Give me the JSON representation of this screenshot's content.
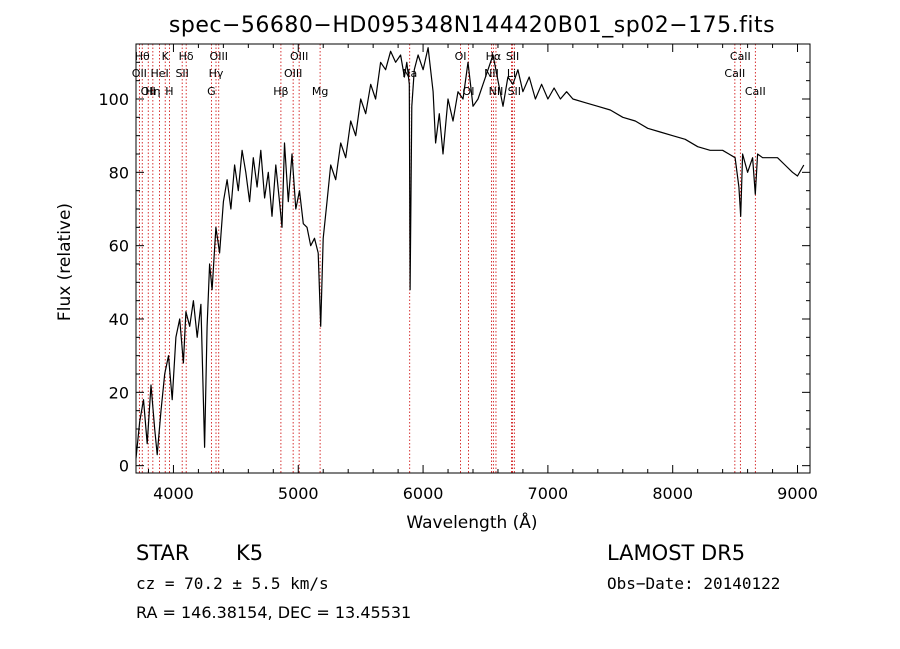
{
  "chart_data": {
    "type": "line",
    "title": "spec−56680−HD095348N144420B01_sp02−175.fits",
    "xlabel": "Wavelength (Å)",
    "ylabel": "Flux (relative)",
    "xlim": [
      3700,
      9100
    ],
    "ylim": [
      -2,
      115
    ],
    "xticks": [
      4000,
      5000,
      6000,
      7000,
      8000,
      9000
    ],
    "yticks": [
      0,
      20,
      40,
      60,
      80,
      100
    ],
    "grid": false,
    "line_color": "#000000",
    "marker_color": "#cc0000",
    "spectrum": {
      "x": [
        3700,
        3730,
        3760,
        3790,
        3820,
        3850,
        3870,
        3900,
        3930,
        3960,
        3990,
        4020,
        4050,
        4080,
        4100,
        4130,
        4160,
        4190,
        4220,
        4250,
        4270,
        4290,
        4310,
        4340,
        4370,
        4400,
        4430,
        4460,
        4490,
        4520,
        4550,
        4580,
        4610,
        4640,
        4670,
        4700,
        4730,
        4760,
        4790,
        4820,
        4850,
        4870,
        4890,
        4920,
        4950,
        4980,
        5010,
        5040,
        5070,
        5100,
        5130,
        5160,
        5180,
        5200,
        5230,
        5260,
        5300,
        5340,
        5380,
        5420,
        5460,
        5500,
        5540,
        5580,
        5620,
        5660,
        5700,
        5740,
        5780,
        5820,
        5850,
        5870,
        5890,
        5896,
        5910,
        5930,
        5960,
        6000,
        6040,
        6080,
        6100,
        6130,
        6160,
        6200,
        6240,
        6280,
        6320,
        6360,
        6400,
        6440,
        6480,
        6520,
        6560,
        6600,
        6640,
        6680,
        6720,
        6760,
        6800,
        6850,
        6900,
        6950,
        7000,
        7050,
        7100,
        7150,
        7200,
        7300,
        7400,
        7500,
        7600,
        7700,
        7800,
        7900,
        8000,
        8100,
        8200,
        8300,
        8400,
        8450,
        8500,
        8530,
        8545,
        8560,
        8600,
        8640,
        8662,
        8680,
        8720,
        8780,
        8840,
        8900,
        8960,
        9000,
        9050
      ],
      "y": [
        2,
        12,
        18,
        6,
        22,
        10,
        3,
        15,
        25,
        30,
        18,
        35,
        40,
        28,
        42,
        38,
        45,
        35,
        44,
        5,
        38,
        55,
        48,
        65,
        58,
        72,
        78,
        70,
        82,
        75,
        86,
        80,
        72,
        84,
        76,
        86,
        73,
        80,
        68,
        82,
        72,
        65,
        88,
        72,
        85,
        70,
        75,
        66,
        65,
        60,
        62,
        58,
        38,
        62,
        72,
        82,
        78,
        88,
        84,
        94,
        90,
        100,
        96,
        104,
        100,
        110,
        108,
        113,
        110,
        112,
        106,
        110,
        104,
        48,
        98,
        108,
        112,
        108,
        114,
        102,
        88,
        96,
        85,
        100,
        94,
        102,
        100,
        110,
        98,
        100,
        104,
        108,
        112,
        105,
        98,
        106,
        104,
        108,
        102,
        106,
        100,
        104,
        100,
        103,
        100,
        102,
        100,
        99,
        98,
        97,
        95,
        94,
        92,
        91,
        90,
        89,
        87,
        86,
        86,
        85,
        84,
        76,
        68,
        85,
        80,
        84,
        74,
        85,
        84,
        84,
        84,
        82,
        80,
        79,
        82
      ]
    },
    "line_markers": [
      {
        "w": 3750,
        "label": "Hθ",
        "row": 1
      },
      {
        "w": 3727,
        "label": "OII",
        "row": 2
      },
      {
        "w": 3798,
        "label": "OII",
        "row": 3
      },
      {
        "w": 3835,
        "label": "Hη",
        "row": 3
      },
      {
        "w": 3934,
        "label": "K",
        "row": 1
      },
      {
        "w": 3889,
        "label": "HeI",
        "row": 2
      },
      {
        "w": 3968,
        "label": "H",
        "row": 3
      },
      {
        "w": 4102,
        "label": "Hδ",
        "row": 1
      },
      {
        "w": 4070,
        "label": "SII",
        "row": 2
      },
      {
        "w": 4363,
        "label": "OIII",
        "row": 1
      },
      {
        "w": 4341,
        "label": "Hγ",
        "row": 2
      },
      {
        "w": 4304,
        "label": "G",
        "row": 3
      },
      {
        "w": 4861,
        "label": "Hβ",
        "row": 3
      },
      {
        "w": 5007,
        "label": "OIII",
        "row": 1
      },
      {
        "w": 4959,
        "label": "OIII",
        "row": 2
      },
      {
        "w": 5175,
        "label": "Mg",
        "row": 3
      },
      {
        "w": 5893,
        "label": "Na",
        "row": 2
      },
      {
        "w": 6300,
        "label": "OI",
        "row": 1
      },
      {
        "w": 6364,
        "label": "OI",
        "row": 3
      },
      {
        "w": 6563,
        "label": "Hα",
        "row": 1
      },
      {
        "w": 6548,
        "label": "NII",
        "row": 2
      },
      {
        "w": 6584,
        "label": "NII",
        "row": 3
      },
      {
        "w": 6717,
        "label": "SII",
        "row": 1
      },
      {
        "w": 6708,
        "label": "Li",
        "row": 2
      },
      {
        "w": 6731,
        "label": "SII",
        "row": 3
      },
      {
        "w": 8542,
        "label": "CaII",
        "row": 1
      },
      {
        "w": 8498,
        "label": "CaII",
        "row": 2
      },
      {
        "w": 8662,
        "label": "CaII",
        "row": 3
      }
    ]
  },
  "info": {
    "class": "STAR",
    "subclass": "K5",
    "cz": "cz = 70.2 ± 5.5 km/s",
    "radec": "RA = 146.38154, DEC =  13.45531",
    "survey": "LAMOST DR5",
    "obsdate": "Obs−Date: 20140122"
  }
}
